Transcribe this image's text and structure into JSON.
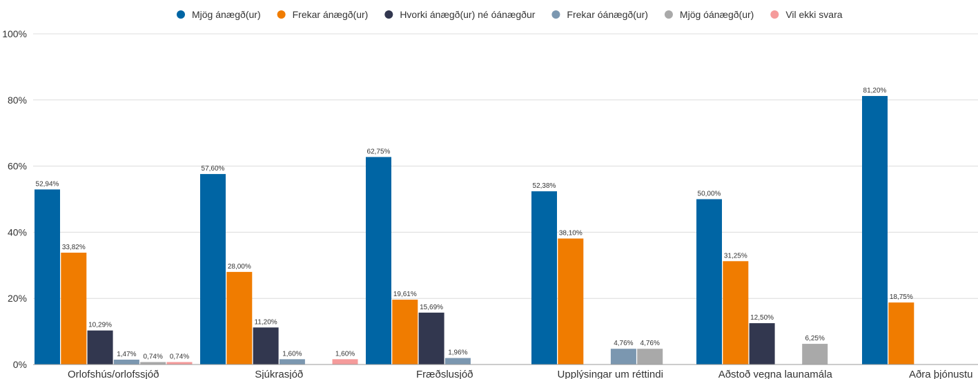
{
  "chart_data": {
    "type": "bar",
    "categories": [
      "Orlofshús/orlofssjóð",
      "Sjúkrasjóð",
      "Fræðslusjóð",
      "Upplýsingar um réttindi",
      "Aðstoð vegna launamála",
      "Aðra þjónustu"
    ],
    "series": [
      {
        "name": "Mjög ánægð(ur)",
        "color": "#0065a4",
        "values": [
          52.94,
          57.6,
          62.75,
          52.38,
          50.0,
          81.2
        ],
        "labels": [
          "52,94%",
          "57,60%",
          "62,75%",
          "52,38%",
          "50,00%",
          "81,20%"
        ]
      },
      {
        "name": "Frekar ánægð(ur)",
        "color": "#f07c00",
        "values": [
          33.82,
          28.0,
          19.61,
          38.1,
          31.25,
          18.75
        ],
        "labels": [
          "33,82%",
          "28,00%",
          "19,61%",
          "38,10%",
          "31,25%",
          "18,75%"
        ]
      },
      {
        "name": "Hvorki ánægð(ur) né óánægður",
        "color": "#32374f",
        "values": [
          10.29,
          11.2,
          15.69,
          null,
          12.5,
          null
        ],
        "labels": [
          "10,29%",
          "11,20%",
          "15,69%",
          null,
          "12,50%",
          null
        ]
      },
      {
        "name": "Frekar óánægð(ur)",
        "color": "#7b97b0",
        "values": [
          1.47,
          1.6,
          1.96,
          4.76,
          null,
          null
        ],
        "labels": [
          "1,47%",
          "1,60%",
          "1,96%",
          "4,76%",
          null,
          null
        ]
      },
      {
        "name": "Mjög óánægð(ur)",
        "color": "#a9a9a9",
        "values": [
          0.74,
          null,
          null,
          4.76,
          6.25,
          null
        ],
        "labels": [
          "0,74%",
          null,
          null,
          "4,76%",
          "6,25%",
          null
        ]
      },
      {
        "name": "Vil ekki svara",
        "color": "#f59b9b",
        "values": [
          0.74,
          1.6,
          null,
          null,
          null,
          null
        ],
        "labels": [
          "0,74%",
          "1,60%",
          null,
          null,
          null,
          null
        ]
      }
    ],
    "ylim": [
      0,
      100
    ],
    "yticks": [
      0,
      20,
      40,
      60,
      80,
      100
    ],
    "ytick_labels": [
      "0%",
      "20%",
      "40%",
      "60%",
      "80%",
      "100%"
    ],
    "grid": true,
    "legend_position": "top",
    "title": "",
    "xlabel": "",
    "ylabel": ""
  }
}
